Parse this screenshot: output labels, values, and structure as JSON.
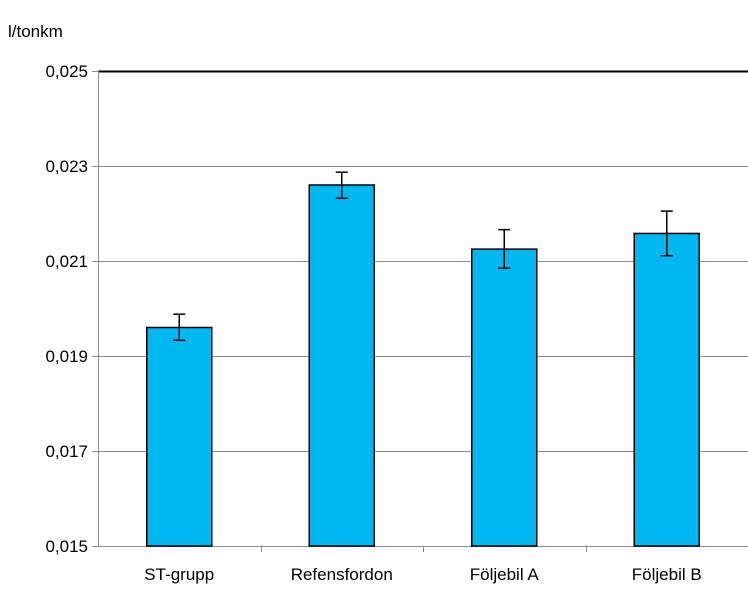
{
  "chart_data": {
    "type": "bar",
    "title": "",
    "xlabel": "",
    "ylabel": "l/tonkm",
    "categories": [
      "ST-grupp",
      "Refensfordon",
      "Följebil A",
      "Följebil B"
    ],
    "values": [
      0.0196,
      0.0226,
      0.02125,
      0.02158
    ],
    "error_low": [
      0.01933,
      0.02232,
      0.02085,
      0.02111
    ],
    "error_high": [
      0.01988,
      0.02287,
      0.02166,
      0.02205
    ],
    "ylim": [
      0.015,
      0.025
    ],
    "yticks": [
      0.015,
      0.017,
      0.019,
      0.021,
      0.023,
      0.025
    ],
    "ytick_labels": [
      "0,015",
      "0,017",
      "0,019",
      "0,021",
      "0,023",
      "0,025"
    ],
    "grid": true,
    "legend": "none",
    "colors": {
      "bar_fill": "#00B8F1",
      "bar_stroke": "#000000",
      "grid": "#8C8C8C",
      "axis": "#8C8C8C",
      "top_line": "#000000"
    }
  }
}
